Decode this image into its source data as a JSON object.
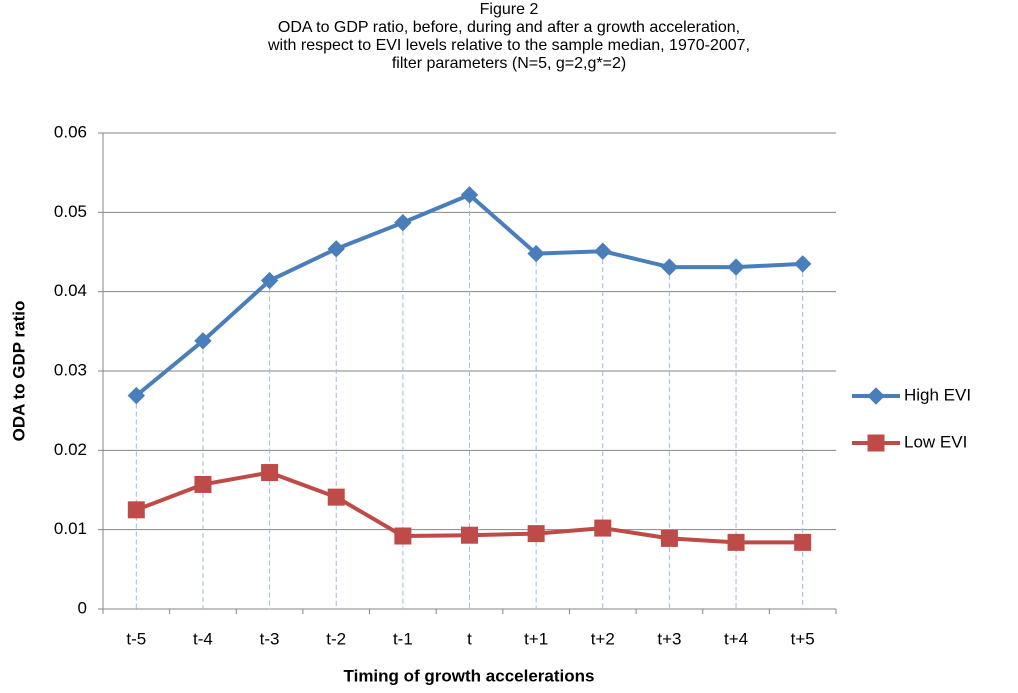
{
  "chart_data": {
    "type": "line",
    "title": [
      "Figure 2",
      "ODA to GDP ratio, before, during and after a growth acceleration,",
      "with respect to EVI levels relative to the sample median, 1970-2007,",
      "filter parameters (N=5, g=2,g*=2)"
    ],
    "x_label": "Timing of growth accelerations",
    "y_label": "ODA to GDP ratio",
    "categories": [
      "t-5",
      "t-4",
      "t-3",
      "t-2",
      "t-1",
      "t",
      "t+1",
      "t+2",
      "t+3",
      "t+4",
      "t+5"
    ],
    "series": [
      {
        "name": "High EVI",
        "color": "#4a7ebb",
        "marker": "diamond",
        "values": [
          0.0269,
          0.0338,
          0.0414,
          0.0454,
          0.0487,
          0.0522,
          0.0448,
          0.0451,
          0.0431,
          0.0431,
          0.0435
        ]
      },
      {
        "name": "Low EVI",
        "color": "#be4b48",
        "marker": "square",
        "values": [
          0.0125,
          0.0157,
          0.0172,
          0.0141,
          0.0092,
          0.0093,
          0.0095,
          0.0102,
          0.0089,
          0.0084,
          0.0084
        ]
      }
    ],
    "ylim": [
      0,
      0.06
    ],
    "yticks": [
      0,
      0.01,
      0.02,
      0.03,
      0.04,
      0.05,
      0.06
    ],
    "grid": true,
    "drop_lines": true,
    "legend": "right"
  }
}
